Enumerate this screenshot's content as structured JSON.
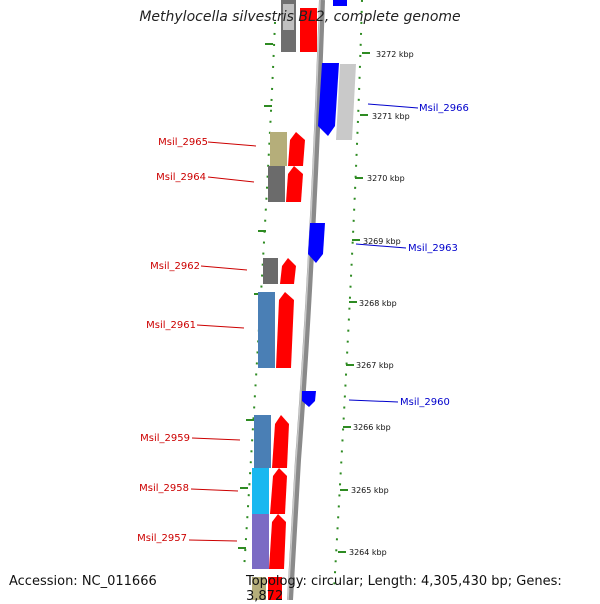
{
  "title": "Methylocella silvestris BL2, complete genome",
  "accession": "Accession: NC_011666",
  "stats": "Topology: circular; Length: 4,305,430 bp; Genes: 3,872",
  "colors": {
    "forward_strand": "#ff0000",
    "reverse_strand": "#0000ff",
    "backbone": "#8a8a8a",
    "tick_marks": "#2e8b22",
    "label_forward": "#cc0000",
    "label_reverse": "#0000cc"
  },
  "scale_ticks": [
    "3272 kbp",
    "3271 kbp",
    "3270 kbp",
    "3269 kbp",
    "3268 kbp",
    "3267 kbp",
    "3266 kbp",
    "3265 kbp",
    "3264 kbp"
  ],
  "genes": [
    {
      "label": "Msil_2966",
      "strand": "reverse"
    },
    {
      "label": "Msil_2965",
      "strand": "forward"
    },
    {
      "label": "Msil_2964",
      "strand": "forward"
    },
    {
      "label": "Msil_2963",
      "strand": "reverse"
    },
    {
      "label": "Msil_2962",
      "strand": "forward"
    },
    {
      "label": "Msil_2961",
      "strand": "forward"
    },
    {
      "label": "Msil_2960",
      "strand": "reverse"
    },
    {
      "label": "Msil_2959",
      "strand": "forward"
    },
    {
      "label": "Msil_2958",
      "strand": "forward"
    },
    {
      "label": "Msil_2957",
      "strand": "forward"
    }
  ]
}
